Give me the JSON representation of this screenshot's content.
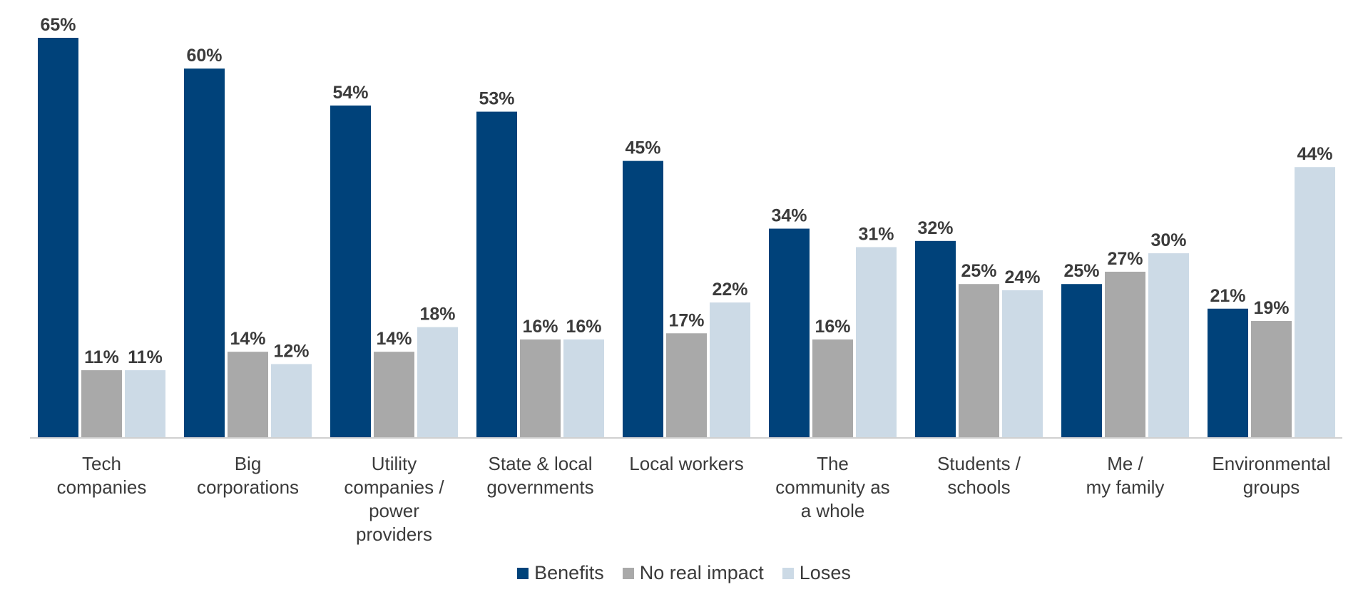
{
  "chart_data": {
    "type": "bar",
    "categories": [
      [
        "Tech",
        "companies"
      ],
      [
        "Big",
        "corporations"
      ],
      [
        "Utility",
        "companies /",
        "power",
        "providers"
      ],
      [
        "State & local",
        "governments"
      ],
      [
        "Local workers"
      ],
      [
        "The",
        "community as",
        "a whole"
      ],
      [
        "Students /",
        "schools"
      ],
      [
        "Me /",
        "my family"
      ],
      [
        "Environmental",
        "groups"
      ]
    ],
    "series": [
      {
        "name": "Benefits",
        "color": "#00427a",
        "values": [
          65,
          60,
          54,
          53,
          45,
          34,
          32,
          25,
          21
        ]
      },
      {
        "name": "No real impact",
        "color": "#a9a9a9",
        "values": [
          11,
          14,
          14,
          16,
          17,
          16,
          25,
          27,
          19
        ]
      },
      {
        "name": "Loses",
        "color": "#ccdae6",
        "values": [
          11,
          12,
          18,
          16,
          22,
          31,
          24,
          30,
          44
        ]
      }
    ],
    "value_suffix": "%",
    "ylim": [
      0,
      70
    ],
    "grid": false,
    "legend_position": "bottom"
  }
}
